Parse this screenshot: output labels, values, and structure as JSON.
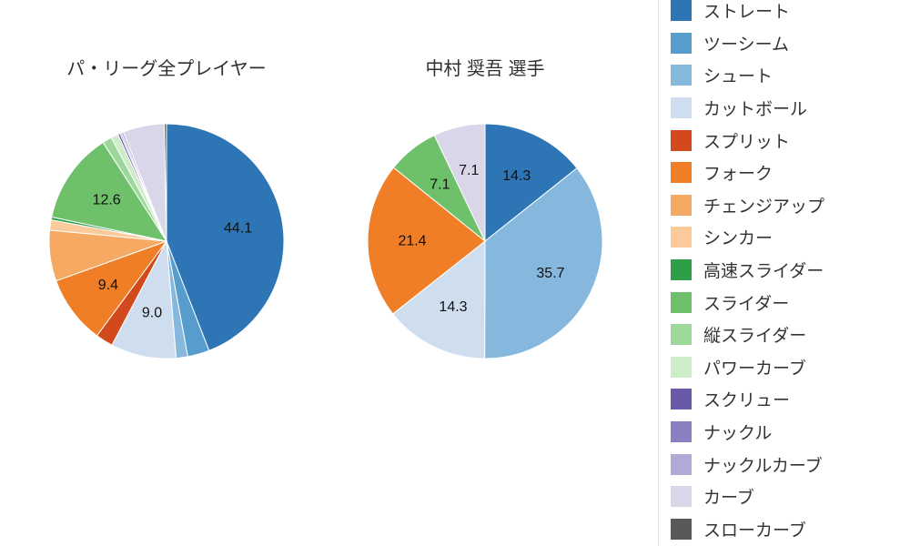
{
  "chart_data": [
    {
      "type": "pie",
      "title": "パ・リーグ全プレイヤー",
      "value_unit": "%",
      "direction": "clockwise",
      "start_angle": "top",
      "slices": [
        {
          "label": "ストレート",
          "value": 44.1,
          "show_label": true
        },
        {
          "label": "ツーシーム",
          "value": 3.0,
          "show_label": false
        },
        {
          "label": "シュート",
          "value": 1.6,
          "show_label": false
        },
        {
          "label": "カットボール",
          "value": 9.0,
          "show_label": true
        },
        {
          "label": "スプリット",
          "value": 2.4,
          "show_label": false
        },
        {
          "label": "フォーク",
          "value": 9.4,
          "show_label": true
        },
        {
          "label": "チェンジアップ",
          "value": 7.0,
          "show_label": false
        },
        {
          "label": "シンカー",
          "value": 1.4,
          "show_label": false
        },
        {
          "label": "高速スライダー",
          "value": 0.4,
          "show_label": false
        },
        {
          "label": "スライダー",
          "value": 12.6,
          "show_label": true
        },
        {
          "label": "縦スライダー",
          "value": 1.3,
          "show_label": false
        },
        {
          "label": "パワーカーブ",
          "value": 1.0,
          "show_label": false
        },
        {
          "label": "スクリュー",
          "value": 0.3,
          "show_label": false
        },
        {
          "label": "ナックル",
          "value": 0.2,
          "show_label": false
        },
        {
          "label": "ナックルカーブ",
          "value": 0.3,
          "show_label": false
        },
        {
          "label": "カーブ",
          "value": 5.7,
          "show_label": false
        },
        {
          "label": "スローカーブ",
          "value": 0.3,
          "show_label": false
        }
      ]
    },
    {
      "type": "pie",
      "title": "中村 奨吾 選手",
      "value_unit": "%",
      "direction": "clockwise",
      "start_angle": "top",
      "slices": [
        {
          "label": "ストレート",
          "value": 14.3,
          "show_label": true
        },
        {
          "label": "シュート",
          "value": 35.7,
          "show_label": true
        },
        {
          "label": "カットボール",
          "value": 14.3,
          "show_label": true
        },
        {
          "label": "フォーク",
          "value": 21.4,
          "show_label": true
        },
        {
          "label": "スライダー",
          "value": 7.1,
          "show_label": true
        },
        {
          "label": "カーブ",
          "value": 7.1,
          "show_label": true
        }
      ]
    }
  ],
  "legend": {
    "position": "right",
    "items": [
      {
        "label": "ストレート",
        "color": "#2e75b5"
      },
      {
        "label": "ツーシーム",
        "color": "#569dce"
      },
      {
        "label": "シュート",
        "color": "#85b8dc"
      },
      {
        "label": "カットボール",
        "color": "#cfdeef"
      },
      {
        "label": "スプリット",
        "color": "#d2491d"
      },
      {
        "label": "フォーク",
        "color": "#f07e26"
      },
      {
        "label": "チェンジアップ",
        "color": "#f5a963"
      },
      {
        "label": "シンカー",
        "color": "#fbca9a"
      },
      {
        "label": "高速スライダー",
        "color": "#2e9e49"
      },
      {
        "label": "スライダー",
        "color": "#6ec06a"
      },
      {
        "label": "縦スライダー",
        "color": "#9ed79a"
      },
      {
        "label": "パワーカーブ",
        "color": "#cdecc8"
      },
      {
        "label": "スクリュー",
        "color": "#6a58a9"
      },
      {
        "label": "ナックル",
        "color": "#8c7fc1"
      },
      {
        "label": "ナックルカーブ",
        "color": "#b2aad6"
      },
      {
        "label": "カーブ",
        "color": "#d9d6ea"
      },
      {
        "label": "スローカーブ",
        "color": "#595959"
      }
    ]
  }
}
